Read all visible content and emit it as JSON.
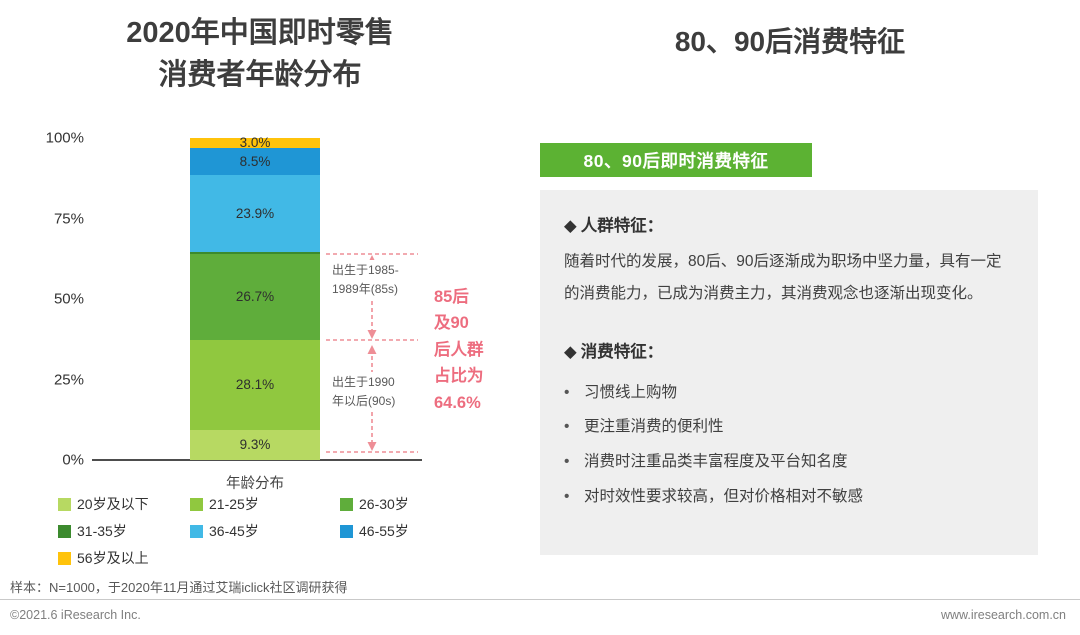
{
  "page": {
    "left_title": "2020年中国即时零售\n消费者年龄分布",
    "right_title": "80、90后消费特征"
  },
  "chart_data": {
    "type": "bar",
    "stacked": true,
    "title": "2020年中国即时零售消费者年龄分布",
    "xlabel": "年龄分布",
    "ylabel": "",
    "ylim": [
      0,
      100
    ],
    "grid": false,
    "y_axis": {
      "ticks": [
        {
          "label": "100%",
          "value": 100
        },
        {
          "label": "75%",
          "value": 75
        },
        {
          "label": "50%",
          "value": 50
        },
        {
          "label": "25%",
          "value": 25
        },
        {
          "label": "0%",
          "value": 0
        }
      ]
    },
    "segments_bottom_to_top": [
      {
        "label": "20岁及以下",
        "value": 9.3,
        "data_label": "9.3%",
        "color": "#B7D962"
      },
      {
        "label": "21-25岁",
        "value": 28.1,
        "data_label": "28.1%",
        "color": "#90C83F"
      },
      {
        "label": "26-30岁",
        "value": 26.7,
        "data_label": "26.7%",
        "color": "#5FAD3B"
      },
      {
        "label": "31-35岁",
        "value": 0.5,
        "data_label": "",
        "color": "#3C8A2E",
        "estimated": true
      },
      {
        "label": "36-45岁",
        "value": 23.9,
        "data_label": "23.9%",
        "color": "#41B9E6"
      },
      {
        "label": "46-55岁",
        "value": 8.5,
        "data_label": "8.5%",
        "color": "#1F96D5"
      },
      {
        "label": "56岁及以上",
        "value": 3.0,
        "data_label": "3.0%",
        "color": "#FFC30B"
      }
    ],
    "legend": [
      {
        "label": "20岁及以下",
        "color": "#B7D962"
      },
      {
        "label": "21-25岁",
        "color": "#90C83F"
      },
      {
        "label": "26-30岁",
        "color": "#5FAD3B"
      },
      {
        "label": "31-35岁",
        "color": "#3C8A2E"
      },
      {
        "label": "36-45岁",
        "color": "#41B9E6"
      },
      {
        "label": "46-55岁",
        "color": "#1F96D5"
      },
      {
        "label": "56岁及以上",
        "color": "#FFC30B"
      }
    ],
    "legend_position": "bottom",
    "annotations": {
      "born_85s": "出生于1985-\n1989年(85s)",
      "born_90s": "出生于1990\n年以后(90s)",
      "highlight": "85后\n及90\n后人群\n占比为\n64.6%"
    }
  },
  "panel": {
    "header": "80、90后即时消费特征",
    "diamond_glyph": "◆",
    "bullet_glyph": "•",
    "section1_title": "人群特征：",
    "section1_body": "随着时代的发展，80后、90后逐渐成为职场中坚力量，具有一定的消费能力，已成为消费主力，其消费观念也逐渐出现变化。",
    "section2_title": "消费特征：",
    "bullets": [
      "习惯线上购物",
      "更注重消费的便利性",
      "消费时注重品类丰富程度及平台知名度",
      "对时效性要求较高，但对价格相对不敏感"
    ]
  },
  "footer": {
    "sample_note": "样本：N=1000，于2020年11月通过艾瑞iclick社区调研获得",
    "copyright": "©2021.6 iResearch Inc.",
    "website": "www.iresearch.com.cn"
  },
  "colors": {
    "header_green": "#5CB233",
    "annotation_pink": "#ED6D7F",
    "bracket_pink": "#EE8E96",
    "panel_gray": "#EFEFEF"
  }
}
